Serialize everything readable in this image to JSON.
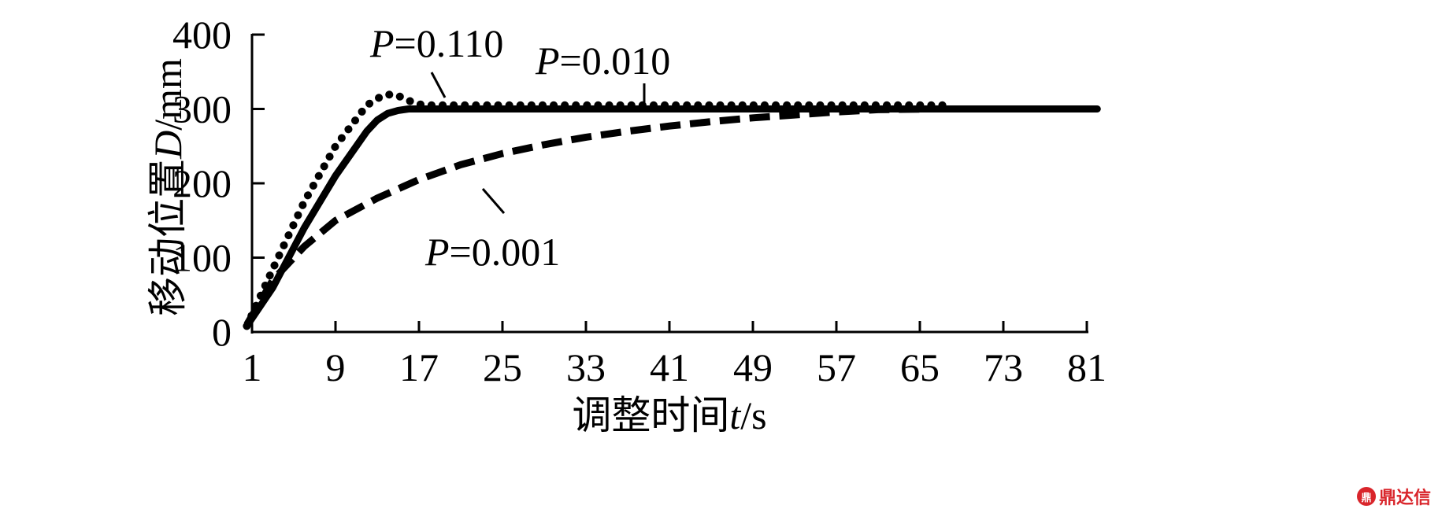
{
  "chart_data": {
    "type": "line",
    "title": "",
    "ylabel": "移动位置",
    "ylabel_var": "D",
    "ylabel_unit": "/mm",
    "xlabel": "调整时间",
    "xlabel_var": "t",
    "xlabel_unit": "/s",
    "xlim": [
      1,
      81
    ],
    "ylim": [
      0,
      400
    ],
    "x_ticks": [
      1,
      9,
      17,
      25,
      33,
      41,
      49,
      57,
      65,
      73,
      81
    ],
    "y_ticks": [
      0,
      100,
      200,
      300,
      400
    ],
    "grid": false,
    "legend": "none",
    "series": [
      {
        "name": "P=0.110",
        "style": "dotted",
        "x": [
          0.5,
          3,
          6,
          9,
          12,
          13.5,
          14.5,
          15.5,
          16.5,
          17.5,
          20,
          30,
          40,
          50,
          60,
          68
        ],
        "y": [
          8,
          85,
          175,
          250,
          305,
          318,
          320,
          315,
          308,
          305,
          305,
          305,
          305,
          305,
          305,
          305
        ]
      },
      {
        "name": "P=0.010",
        "style": "solid",
        "x": [
          0.5,
          3,
          6,
          9,
          12,
          13,
          14,
          15,
          16,
          17,
          20,
          30,
          40,
          50,
          60,
          70,
          82
        ],
        "y": [
          8,
          60,
          140,
          210,
          270,
          285,
          294,
          298,
          300,
          300,
          300,
          300,
          300,
          300,
          300,
          300,
          300
        ]
      },
      {
        "name": "P=0.001",
        "style": "dashed",
        "x": [
          0.5,
          3,
          6,
          9,
          13,
          17,
          21,
          25,
          29,
          33,
          37,
          41,
          45,
          49,
          53,
          57,
          61,
          66
        ],
        "y": [
          10,
          70,
          115,
          150,
          180,
          205,
          225,
          240,
          252,
          262,
          270,
          277,
          283,
          288,
          292,
          296,
          299,
          300
        ]
      }
    ],
    "annotations": [
      {
        "var": "P",
        "text": "=0.110"
      },
      {
        "var": "P",
        "text": "=0.010"
      },
      {
        "var": "P",
        "text": "=0.001"
      }
    ]
  },
  "watermark": {
    "icon_text": "鼎",
    "text": "鼎达信",
    "color": "#d9252b"
  }
}
